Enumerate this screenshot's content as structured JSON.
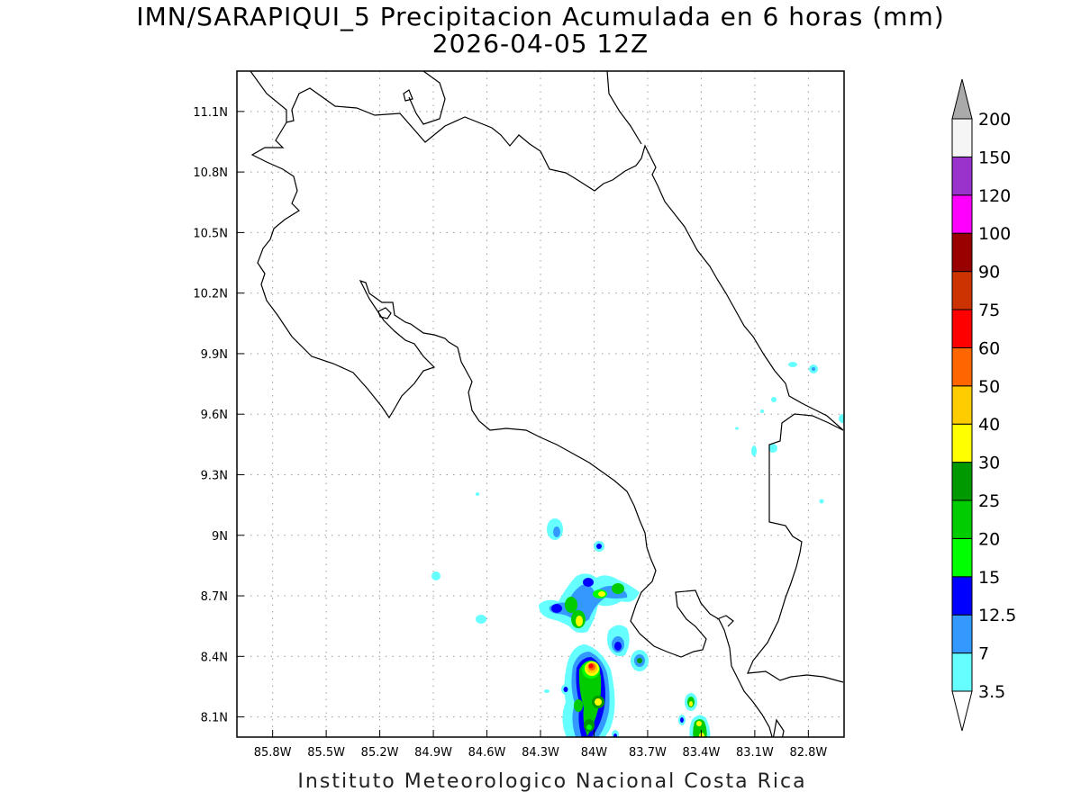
{
  "title": {
    "line1": "IMN/SARAPIQUI_5 Precipitacion Acumulada en 6 horas (mm)",
    "line2": "2026-04-05 12Z"
  },
  "credit": "Instituto Meteorologico Nacional Costa Rica",
  "map": {
    "lon_range": [
      -86.0,
      -82.6
    ],
    "lat_range": [
      8.0,
      11.3
    ],
    "lon_ticks": [
      {
        "value": -85.8,
        "label": "85.8W"
      },
      {
        "value": -85.5,
        "label": "85.5W"
      },
      {
        "value": -85.2,
        "label": "85.2W"
      },
      {
        "value": -84.9,
        "label": "84.9W"
      },
      {
        "value": -84.6,
        "label": "84.6W"
      },
      {
        "value": -84.3,
        "label": "84.3W"
      },
      {
        "value": -84.0,
        "label": "84W"
      },
      {
        "value": -83.7,
        "label": "83.7W"
      },
      {
        "value": -83.4,
        "label": "83.4W"
      },
      {
        "value": -83.1,
        "label": "83.1W"
      },
      {
        "value": -82.8,
        "label": "82.8W"
      }
    ],
    "lat_ticks": [
      {
        "value": 8.1,
        "label": "8.1N"
      },
      {
        "value": 8.4,
        "label": "8.4N"
      },
      {
        "value": 8.7,
        "label": "8.7N"
      },
      {
        "value": 9.0,
        "label": "9N"
      },
      {
        "value": 9.3,
        "label": "9.3N"
      },
      {
        "value": 9.6,
        "label": "9.6N"
      },
      {
        "value": 9.9,
        "label": "9.9N"
      },
      {
        "value": 10.2,
        "label": "10.2N"
      },
      {
        "value": 10.5,
        "label": "10.5N"
      },
      {
        "value": 10.8,
        "label": "10.8N"
      },
      {
        "value": 11.1,
        "label": "11.1N"
      }
    ],
    "grid": "dotted"
  },
  "legend": {
    "levels": [
      "3.5",
      "7",
      "12.5",
      "15",
      "20",
      "25",
      "30",
      "40",
      "50",
      "60",
      "75",
      "90",
      "100",
      "120",
      "150",
      "200"
    ],
    "colors": [
      "#ffffff",
      "#66ffff",
      "#3399ff",
      "#0000ff",
      "#00ff00",
      "#00cc00",
      "#009900",
      "#ffff00",
      "#ffcc00",
      "#ff6600",
      "#ff0000",
      "#cc3300",
      "#990000",
      "#ff00ff",
      "#9933cc",
      "#f5f5f5",
      "#aaaaaa"
    ]
  },
  "chart_data": {
    "type": "heatmap",
    "title": "IMN/SARAPIQUI_5 Precipitacion Acumulada en 6 horas (mm)",
    "subtitle": "2026-04-05 12Z",
    "xlim": [
      -86.0,
      -82.6
    ],
    "ylim": [
      8.0,
      11.3
    ],
    "units": "mm",
    "cells": [
      {
        "lon": -84.28,
        "lat": 9.05,
        "value": 7
      },
      {
        "lon": -84.87,
        "lat": 8.79,
        "value": 3.5
      },
      {
        "lon": -84.6,
        "lat": 8.58,
        "value": 3.5
      },
      {
        "lon": -84.18,
        "lat": 8.64,
        "value": 12.5
      },
      {
        "lon": -84.04,
        "lat": 8.62,
        "value": 25
      },
      {
        "lon": -83.94,
        "lat": 8.73,
        "value": 15
      },
      {
        "lon": -83.82,
        "lat": 8.76,
        "value": 25
      },
      {
        "lon": -83.92,
        "lat": 8.93,
        "value": 12.5
      },
      {
        "lon": -83.88,
        "lat": 8.45,
        "value": 15
      },
      {
        "lon": -83.75,
        "lat": 8.38,
        "value": 15
      },
      {
        "lon": -84.0,
        "lat": 8.36,
        "value": 75
      },
      {
        "lon": -83.93,
        "lat": 8.19,
        "value": 40
      },
      {
        "lon": -84.05,
        "lat": 8.16,
        "value": 25
      },
      {
        "lon": -83.99,
        "lat": 8.05,
        "value": 25
      },
      {
        "lon": -83.36,
        "lat": 8.18,
        "value": 20
      },
      {
        "lon": -83.35,
        "lat": 8.05,
        "value": 40
      },
      {
        "lon": -82.72,
        "lat": 9.82,
        "value": 3.5
      },
      {
        "lon": -83.0,
        "lat": 9.44,
        "value": 3.5
      },
      {
        "lon": -83.1,
        "lat": 9.43,
        "value": 3.5
      },
      {
        "lon": -82.62,
        "lat": 9.58,
        "value": 3.5
      }
    ]
  }
}
